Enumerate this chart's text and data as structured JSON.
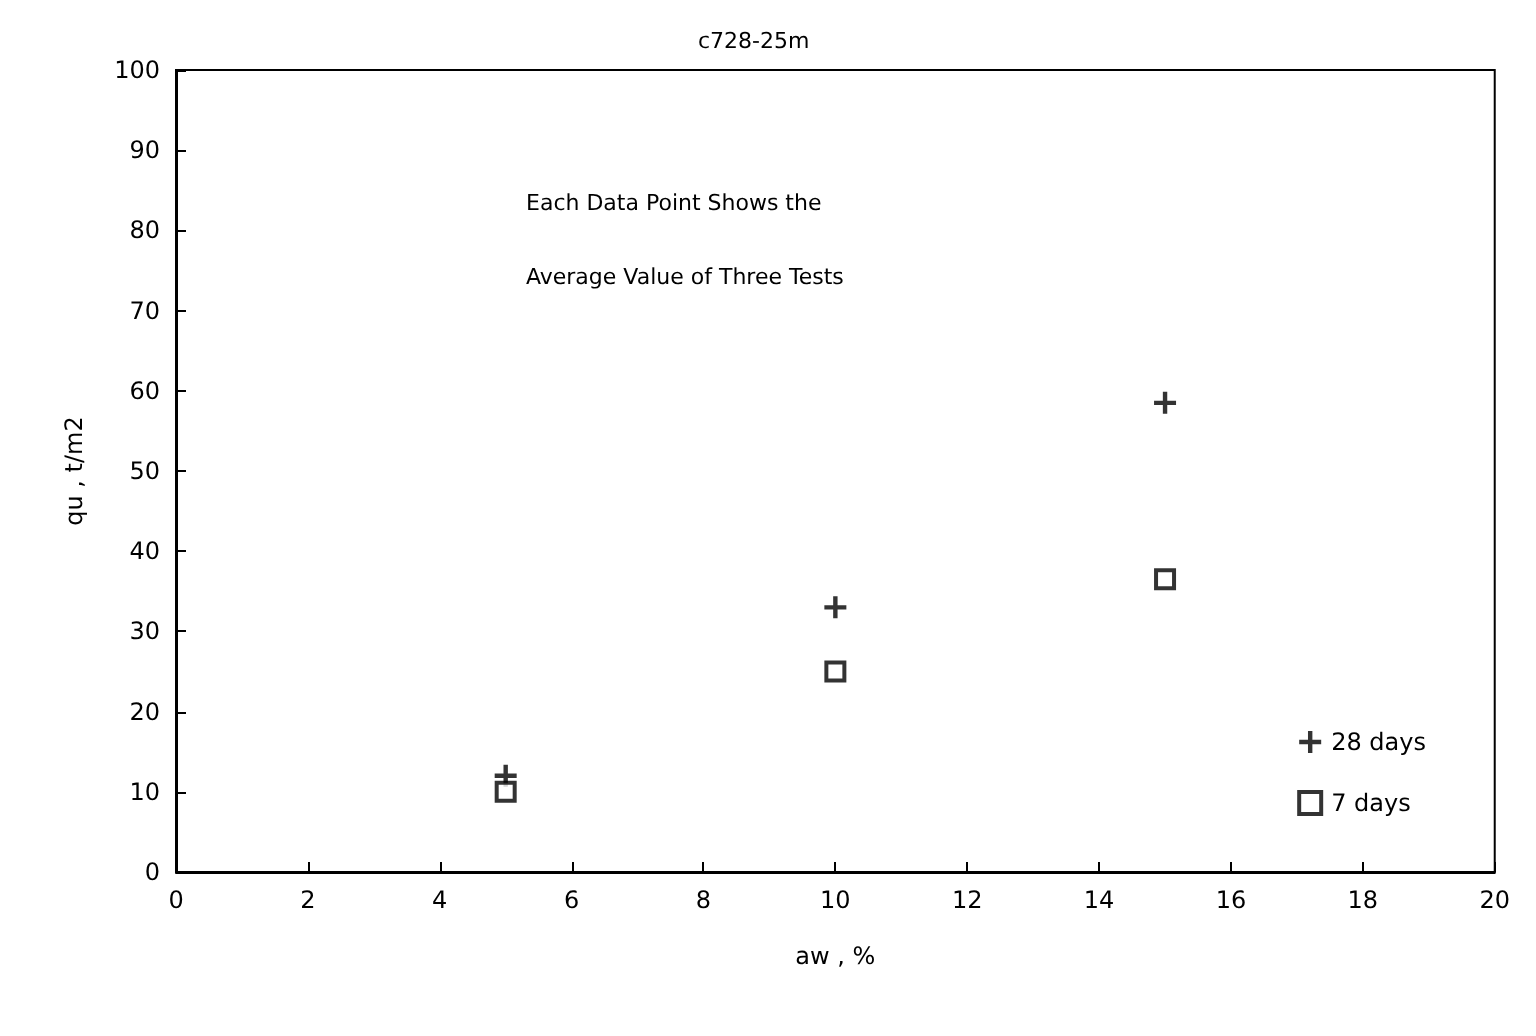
{
  "chart_data": {
    "type": "scatter",
    "title": "c728-25m",
    "xlabel": "aw , %",
    "ylabel": "qu , t/m2",
    "annotations": [
      "Each Data Point Shows the",
      "Average Value of Three Tests"
    ],
    "x": [
      5,
      10,
      15
    ],
    "series": [
      {
        "name": "28 days",
        "color": "#000000",
        "marker": "cross",
        "values": [
          12,
          33,
          58.5
        ]
      },
      {
        "name": "7 days",
        "color": "#000000",
        "marker": "square",
        "values": [
          10,
          25,
          36.5
        ]
      }
    ],
    "xlim": [
      0,
      20
    ],
    "xticks": [
      0,
      2,
      4,
      6,
      8,
      10,
      12,
      14,
      16,
      18,
      20
    ],
    "ylim": [
      0,
      100
    ],
    "yticks": [
      0,
      10,
      20,
      30,
      40,
      50,
      60,
      70,
      80,
      90,
      100
    ],
    "grid": false,
    "legend": "bottom right"
  }
}
